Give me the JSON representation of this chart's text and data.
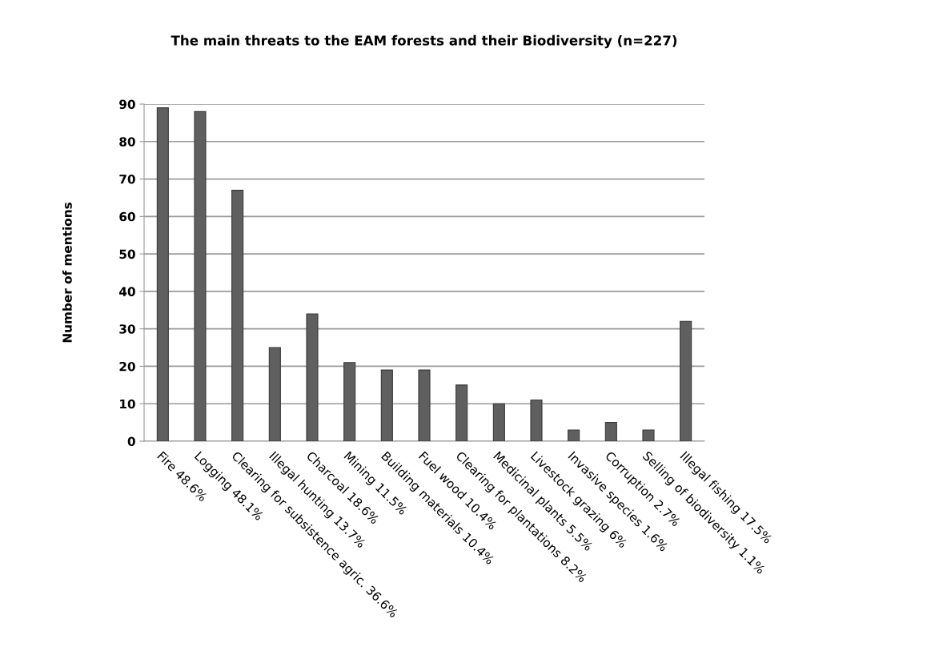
{
  "chart_data": {
    "type": "bar",
    "title": "The main threats to the EAM forests and their Biodiversity (n=227)",
    "ylabel": "Number of mentions",
    "categories": [
      "Fire 48.6%",
      "Logging 48.1%",
      "Clearing for subsistence agric. 36.6%",
      "Illegal hunting 13.7%",
      "Charcoal 18.6%",
      "Mining 11.5%",
      "Building materials 10.4%",
      "Fuel wood 10.4%",
      "Clearing for plantations 8.2%",
      "Medicinal plants 5.5%",
      "Livestock grazing 6%",
      "Invasive species 1.6%",
      "Corruption 2.7%",
      "Selling of biodiversity 1.1%",
      "Illegal fishing 17.5%"
    ],
    "values": [
      89,
      88,
      67,
      25,
      34,
      21,
      19,
      19,
      15,
      10,
      11,
      3,
      5,
      3,
      32
    ],
    "color": "#5f5f5f",
    "ylim": [
      0,
      90
    ],
    "yticks": [
      0,
      10,
      20,
      30,
      40,
      50,
      60,
      70,
      80,
      90
    ],
    "grid": "y"
  }
}
